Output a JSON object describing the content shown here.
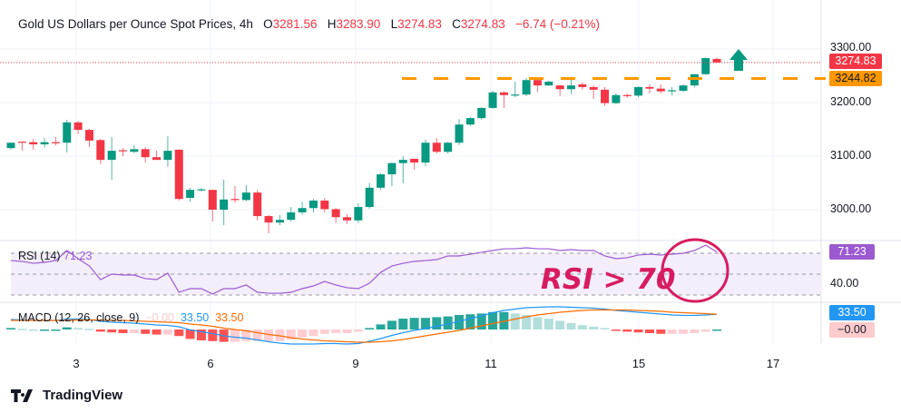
{
  "header": {
    "title": "Gold US Dollars per Ounce Spot Prices, 4h",
    "open_label": "O",
    "open": "3281.56",
    "high_label": "H",
    "high": "3283.90",
    "low_label": "L",
    "low": "3274.83",
    "close_label": "C",
    "close": "3274.83",
    "change": "−6.74 (−0.21%)"
  },
  "colors": {
    "up": "#089981",
    "down": "#f23645",
    "support": "#ff9800",
    "rsi": "#9c5ad0",
    "macd": "#2196f3",
    "signal": "#ff6d00",
    "annotation": "#d81b60"
  },
  "price_axis": {
    "ticks": [
      "3300.00",
      "3200.00",
      "3100.00",
      "3000.00"
    ],
    "tick_values": [
      3300,
      3200,
      3100,
      3000
    ],
    "last_price": "3274.83",
    "last_price_value": 3274.83,
    "support": "3244.82",
    "support_value": 3244.82
  },
  "time_axis": {
    "labels": [
      "3",
      "6",
      "9",
      "11",
      "15",
      "17"
    ],
    "label_candle_index": [
      6,
      18,
      31,
      43,
      56,
      68
    ]
  },
  "candles": [
    [
      3115,
      3125,
      3112,
      3125
    ],
    [
      3127,
      3127,
      3110,
      3126
    ],
    [
      3126,
      3132,
      3112,
      3122
    ],
    [
      3122,
      3134,
      3116,
      3126
    ],
    [
      3126,
      3136,
      3120,
      3124
    ],
    [
      3125,
      3168,
      3107,
      3163
    ],
    [
      3163,
      3166,
      3141,
      3149
    ],
    [
      3149,
      3151,
      3117,
      3129
    ],
    [
      3130,
      3132,
      3085,
      3093
    ],
    [
      3093,
      3136,
      3056,
      3110
    ],
    [
      3111,
      3115,
      3100,
      3109
    ],
    [
      3108,
      3120,
      3106,
      3113
    ],
    [
      3113,
      3117,
      3088,
      3098
    ],
    [
      3098,
      3110,
      3093,
      3093
    ],
    [
      3093,
      3137,
      3080,
      3110
    ],
    [
      3112,
      3112,
      3017,
      3020
    ],
    [
      3022,
      3041,
      3015,
      3037
    ],
    [
      3036,
      3040,
      3034,
      3038
    ],
    [
      3037,
      3037,
      2978,
      3000
    ],
    [
      3000,
      3056,
      2971,
      3019
    ],
    [
      3020,
      3044,
      3013,
      3018
    ],
    [
      3018,
      3046,
      3016,
      3032
    ],
    [
      3032,
      3037,
      2980,
      2988
    ],
    [
      2988,
      2990,
      2956,
      2976
    ],
    [
      2976,
      2990,
      2971,
      2981
    ],
    [
      2981,
      3005,
      2978,
      2995
    ],
    [
      2995,
      3015,
      2991,
      3003
    ],
    [
      3003,
      3020,
      2995,
      3017
    ],
    [
      3017,
      3022,
      2995,
      3001
    ],
    [
      3001,
      3003,
      2975,
      2986
    ],
    [
      2986,
      2992,
      2973,
      2980
    ],
    [
      2980,
      3012,
      2975,
      3005
    ],
    [
      3005,
      3050,
      3002,
      3041
    ],
    [
      3041,
      3068,
      3037,
      3066
    ],
    [
      3066,
      3088,
      3044,
      3087
    ],
    [
      3087,
      3100,
      3049,
      3093
    ],
    [
      3095,
      3095,
      3075,
      3088
    ],
    [
      3088,
      3131,
      3081,
      3125
    ],
    [
      3125,
      3134,
      3105,
      3108
    ],
    [
      3108,
      3127,
      3105,
      3125
    ],
    [
      3125,
      3169,
      3121,
      3159
    ],
    [
      3159,
      3173,
      3156,
      3171
    ],
    [
      3171,
      3191,
      3168,
      3190
    ],
    [
      3190,
      3222,
      3188,
      3219
    ],
    [
      3219,
      3221,
      3190,
      3214
    ],
    [
      3214,
      3239,
      3210,
      3215
    ],
    [
      3215,
      3246,
      3212,
      3242
    ],
    [
      3242,
      3247,
      3220,
      3232
    ],
    [
      3232,
      3241,
      3231,
      3239
    ],
    [
      3232,
      3233,
      3212,
      3225
    ],
    [
      3225,
      3247,
      3216,
      3232
    ],
    [
      3234,
      3238,
      3224,
      3229
    ],
    [
      3229,
      3232,
      3207,
      3224
    ],
    [
      3224,
      3229,
      3194,
      3199
    ],
    [
      3199,
      3217,
      3197,
      3214
    ],
    [
      3214,
      3217,
      3209,
      3213
    ],
    [
      3213,
      3230,
      3210,
      3229
    ],
    [
      3229,
      3234,
      3217,
      3226
    ],
    [
      3226,
      3234,
      3217,
      3221
    ],
    [
      3222,
      3229,
      3213,
      3223
    ],
    [
      3222,
      3234,
      3220,
      3232
    ],
    [
      3232,
      3253,
      3228,
      3253
    ],
    [
      3253,
      3284,
      3252,
      3283
    ],
    [
      3281.56,
      3283.9,
      3274.83,
      3274.83
    ]
  ],
  "rsi": {
    "label": "RSI (14)",
    "value": "71.23",
    "axis_label": "40.00",
    "levels": [
      70,
      50,
      30
    ],
    "values": [
      63,
      62.2,
      60.4,
      61.3,
      63,
      72.6,
      64.8,
      57.8,
      44.8,
      50,
      49.1,
      49.1,
      45.7,
      44.8,
      50.9,
      32.6,
      36.1,
      36.1,
      30.9,
      36.1,
      36.1,
      39.6,
      32.6,
      31.7,
      31.7,
      32.6,
      36.1,
      38.7,
      43,
      39.6,
      37,
      36.1,
      41.3,
      51.7,
      57.8,
      60.4,
      62.2,
      63,
      63.9,
      67.4,
      67.4,
      69.1,
      70.9,
      72.6,
      74.3,
      74.3,
      75.2,
      74.3,
      74.3,
      72.6,
      73.5,
      72.6,
      72.6,
      67.4,
      64.8,
      65.7,
      68.3,
      69.1,
      68.3,
      69.1,
      70,
      72.6,
      77.8,
      71.23
    ]
  },
  "macd": {
    "label": "MACD (12, 26, close, 9)",
    "hist_value": "−0.00",
    "macd_value": "33.50",
    "signal_value": "33.50",
    "macd": [
      22,
      21,
      20,
      20,
      20,
      23,
      23,
      22,
      18,
      16,
      15,
      14,
      12,
      10,
      9,
      6,
      -1,
      -5,
      -9,
      -14,
      -17,
      -19,
      -23,
      -27,
      -30,
      -32,
      -32,
      -32,
      -31,
      -31,
      -32,
      -31,
      -26,
      -20,
      -13,
      -7,
      -2,
      2,
      7,
      12,
      18,
      24,
      30,
      37,
      42,
      45,
      48,
      49,
      50,
      50,
      49,
      48,
      47,
      45,
      42,
      40,
      38,
      36,
      34,
      32,
      31,
      31,
      32,
      33.5
    ],
    "signal": [
      20,
      20,
      20,
      20,
      20,
      20,
      21,
      21,
      21,
      20,
      20,
      19,
      18,
      17,
      16,
      15,
      12,
      10,
      7,
      3,
      0,
      -3,
      -7,
      -11,
      -14,
      -18,
      -21,
      -23,
      -25,
      -26,
      -27,
      -28,
      -28,
      -27,
      -25,
      -22,
      -18,
      -14,
      -10,
      -6,
      -2,
      3,
      8,
      13,
      18,
      23,
      28,
      32,
      35,
      38,
      40,
      42,
      43,
      43,
      43,
      43,
      42,
      41,
      40,
      38,
      37,
      36,
      35,
      33.5
    ]
  },
  "annotation": {
    "text": "RSI > 70"
  },
  "branding": {
    "name": "TradingView"
  }
}
